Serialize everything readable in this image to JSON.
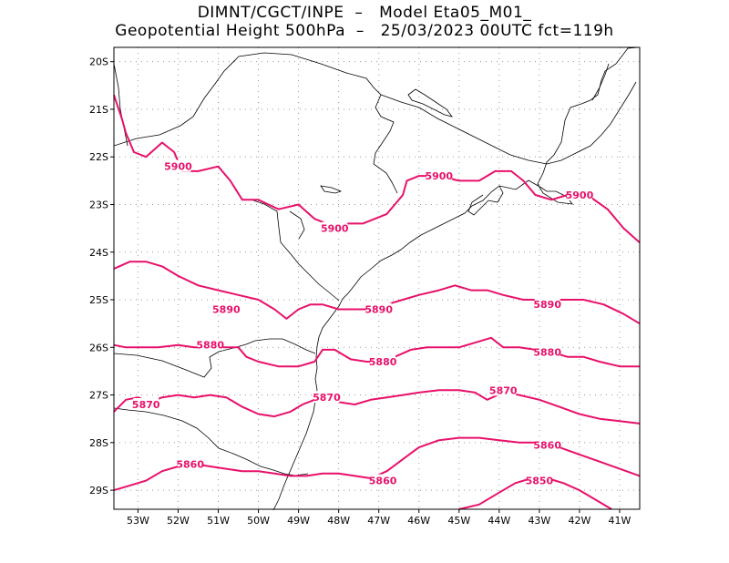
{
  "header": {
    "line1": "DIMNT/CGCT/INPE  –   Model Eta05_M01_",
    "line2": "Geopotential Height 500hPa  –   25/03/2023 00UTC fct=119h"
  },
  "axes": {
    "lat_labels": [
      "20S",
      "21S",
      "22S",
      "23S",
      "24S",
      "25S",
      "26S",
      "27S",
      "28S",
      "29S"
    ],
    "lon_labels": [
      "53W",
      "52W",
      "51W",
      "50W",
      "49W",
      "48W",
      "47W",
      "46W",
      "45W",
      "44W",
      "43W",
      "42W",
      "41W"
    ]
  },
  "colors": {
    "contour": "#e8106a",
    "coast": "#000000",
    "grid": "#999999"
  },
  "chart_data": {
    "type": "contour-map",
    "variable": "Geopotential Height 500hPa",
    "units": "gpm",
    "lon_range": [
      -53.6,
      -40.5
    ],
    "lat_range": [
      -29.4,
      -19.7
    ],
    "contour_levels": [
      5850,
      5860,
      5870,
      5880,
      5890,
      5900
    ],
    "labels": [
      {
        "text": "5900",
        "lon": -52.0,
        "lat": -22.2
      },
      {
        "text": "5900",
        "lon": -48.1,
        "lat": -23.5
      },
      {
        "text": "5900",
        "lon": -45.5,
        "lat": -22.4
      },
      {
        "text": "5900",
        "lon": -42.0,
        "lat": -22.8
      },
      {
        "text": "5890",
        "lon": -50.8,
        "lat": -25.2
      },
      {
        "text": "5890",
        "lon": -47.0,
        "lat": -25.2
      },
      {
        "text": "5890",
        "lon": -42.8,
        "lat": -25.1
      },
      {
        "text": "5880",
        "lon": -51.2,
        "lat": -25.95
      },
      {
        "text": "5880",
        "lon": -46.9,
        "lat": -26.3
      },
      {
        "text": "5880",
        "lon": -42.8,
        "lat": -26.1
      },
      {
        "text": "5870",
        "lon": -52.8,
        "lat": -27.2
      },
      {
        "text": "5870",
        "lon": -48.3,
        "lat": -27.05
      },
      {
        "text": "5870",
        "lon": -43.9,
        "lat": -26.9
      },
      {
        "text": "5860",
        "lon": -51.7,
        "lat": -28.45
      },
      {
        "text": "5860",
        "lon": -46.9,
        "lat": -28.8
      },
      {
        "text": "5860",
        "lon": -42.8,
        "lat": -28.05
      },
      {
        "text": "5850",
        "lon": -43.0,
        "lat": -28.8
      }
    ],
    "contours": [
      {
        "level": 5900,
        "points": [
          [
            -53.6,
            -20.7
          ],
          [
            -53.4,
            -21.2
          ],
          [
            -53.3,
            -21.5
          ],
          [
            -53.1,
            -21.9
          ],
          [
            -52.8,
            -22.0
          ],
          [
            -52.4,
            -21.7
          ],
          [
            -52.1,
            -21.9
          ],
          [
            -51.9,
            -22.3
          ],
          [
            -51.5,
            -22.3
          ],
          [
            -51.0,
            -22.2
          ],
          [
            -50.7,
            -22.5
          ],
          [
            -50.4,
            -22.9
          ],
          [
            -50.0,
            -22.9
          ],
          [
            -49.5,
            -23.1
          ],
          [
            -49.0,
            -23.0
          ],
          [
            -48.6,
            -23.3
          ],
          [
            -48.3,
            -23.4
          ],
          [
            -47.9,
            -23.4
          ],
          [
            -47.4,
            -23.4
          ],
          [
            -46.8,
            -23.2
          ],
          [
            -46.4,
            -22.8
          ],
          [
            -46.3,
            -22.5
          ],
          [
            -46.0,
            -22.4
          ],
          [
            -45.5,
            -22.4
          ],
          [
            -45.0,
            -22.5
          ],
          [
            -44.5,
            -22.5
          ],
          [
            -44.1,
            -22.3
          ],
          [
            -43.7,
            -22.3
          ],
          [
            -43.4,
            -22.5
          ],
          [
            -43.1,
            -22.8
          ],
          [
            -42.7,
            -22.9
          ],
          [
            -42.3,
            -22.8
          ],
          [
            -41.8,
            -22.8
          ],
          [
            -41.3,
            -23.1
          ],
          [
            -40.9,
            -23.5
          ],
          [
            -40.5,
            -23.8
          ]
        ]
      },
      {
        "level": 5890,
        "points": [
          [
            -53.6,
            -24.35
          ],
          [
            -53.2,
            -24.2
          ],
          [
            -52.8,
            -24.2
          ],
          [
            -52.4,
            -24.3
          ],
          [
            -52.0,
            -24.5
          ],
          [
            -51.5,
            -24.7
          ],
          [
            -51.0,
            -24.8
          ],
          [
            -50.5,
            -24.9
          ],
          [
            -50.0,
            -25.0
          ],
          [
            -49.6,
            -25.2
          ],
          [
            -49.3,
            -25.4
          ],
          [
            -49.0,
            -25.2
          ],
          [
            -48.7,
            -25.1
          ],
          [
            -48.4,
            -25.1
          ],
          [
            -48.0,
            -25.2
          ],
          [
            -47.6,
            -25.2
          ],
          [
            -47.2,
            -25.2
          ],
          [
            -46.8,
            -25.1
          ],
          [
            -46.4,
            -25.0
          ],
          [
            -46.0,
            -24.9
          ],
          [
            -45.5,
            -24.8
          ],
          [
            -45.1,
            -24.7
          ],
          [
            -44.7,
            -24.8
          ],
          [
            -44.3,
            -24.8
          ],
          [
            -43.9,
            -24.9
          ],
          [
            -43.4,
            -25.0
          ],
          [
            -42.9,
            -25.0
          ],
          [
            -42.4,
            -25.0
          ],
          [
            -41.9,
            -25.0
          ],
          [
            -41.4,
            -25.1
          ],
          [
            -40.9,
            -25.3
          ],
          [
            -40.5,
            -25.5
          ]
        ]
      },
      {
        "level": 5880,
        "points": [
          [
            -53.6,
            -25.95
          ],
          [
            -53.3,
            -26.0
          ],
          [
            -52.9,
            -26.0
          ],
          [
            -52.5,
            -26.0
          ],
          [
            -52.0,
            -25.95
          ],
          [
            -51.6,
            -26.0
          ],
          [
            -51.0,
            -26.0
          ],
          [
            -50.5,
            -26.0
          ],
          [
            -50.3,
            -26.2
          ],
          [
            -50.0,
            -26.3
          ],
          [
            -49.5,
            -26.4
          ],
          [
            -49.0,
            -26.4
          ],
          [
            -48.6,
            -26.3
          ],
          [
            -48.4,
            -26.05
          ],
          [
            -48.1,
            -26.05
          ],
          [
            -47.7,
            -26.25
          ],
          [
            -47.3,
            -26.3
          ],
          [
            -47.0,
            -26.3
          ],
          [
            -46.6,
            -26.2
          ],
          [
            -46.2,
            -26.05
          ],
          [
            -45.8,
            -26.0
          ],
          [
            -45.4,
            -26.0
          ],
          [
            -45.0,
            -26.0
          ],
          [
            -44.6,
            -25.9
          ],
          [
            -44.2,
            -25.8
          ],
          [
            -43.9,
            -26.0
          ],
          [
            -43.5,
            -26.0
          ],
          [
            -43.1,
            -26.05
          ],
          [
            -42.7,
            -26.1
          ],
          [
            -42.3,
            -26.2
          ],
          [
            -41.9,
            -26.2
          ],
          [
            -41.5,
            -26.3
          ],
          [
            -41.0,
            -26.4
          ],
          [
            -40.5,
            -26.4
          ]
        ]
      },
      {
        "level": 5870,
        "points": [
          [
            -53.6,
            -27.35
          ],
          [
            -53.3,
            -27.1
          ],
          [
            -53.0,
            -27.05
          ],
          [
            -52.7,
            -27.15
          ],
          [
            -52.4,
            -27.05
          ],
          [
            -52.0,
            -27.0
          ],
          [
            -51.6,
            -27.05
          ],
          [
            -51.2,
            -27.0
          ],
          [
            -50.8,
            -27.05
          ],
          [
            -50.4,
            -27.25
          ],
          [
            -50.0,
            -27.4
          ],
          [
            -49.6,
            -27.45
          ],
          [
            -49.2,
            -27.35
          ],
          [
            -48.9,
            -27.2
          ],
          [
            -48.6,
            -27.1
          ],
          [
            -48.3,
            -27.1
          ],
          [
            -48.0,
            -27.15
          ],
          [
            -47.6,
            -27.2
          ],
          [
            -47.2,
            -27.1
          ],
          [
            -46.8,
            -27.05
          ],
          [
            -46.4,
            -27.0
          ],
          [
            -46.0,
            -26.95
          ],
          [
            -45.5,
            -26.9
          ],
          [
            -45.0,
            -26.9
          ],
          [
            -44.6,
            -26.95
          ],
          [
            -44.3,
            -27.1
          ],
          [
            -43.9,
            -26.95
          ],
          [
            -43.5,
            -27.0
          ],
          [
            -43.0,
            -27.1
          ],
          [
            -42.5,
            -27.25
          ],
          [
            -42.0,
            -27.4
          ],
          [
            -41.5,
            -27.5
          ],
          [
            -41.0,
            -27.55
          ],
          [
            -40.5,
            -27.6
          ]
        ]
      },
      {
        "level": 5860,
        "points": [
          [
            -53.6,
            -29.0
          ],
          [
            -53.2,
            -28.9
          ],
          [
            -52.8,
            -28.8
          ],
          [
            -52.4,
            -28.6
          ],
          [
            -52.0,
            -28.5
          ],
          [
            -51.6,
            -28.45
          ],
          [
            -51.2,
            -28.5
          ],
          [
            -50.8,
            -28.55
          ],
          [
            -50.4,
            -28.6
          ],
          [
            -50.0,
            -28.6
          ],
          [
            -49.6,
            -28.65
          ],
          [
            -49.2,
            -28.7
          ],
          [
            -48.8,
            -28.7
          ],
          [
            -48.4,
            -28.65
          ],
          [
            -48.0,
            -28.65
          ],
          [
            -47.6,
            -28.7
          ],
          [
            -47.2,
            -28.75
          ],
          [
            -46.8,
            -28.6
          ],
          [
            -46.4,
            -28.35
          ],
          [
            -46.0,
            -28.1
          ],
          [
            -45.5,
            -27.95
          ],
          [
            -45.0,
            -27.9
          ],
          [
            -44.5,
            -27.9
          ],
          [
            -44.0,
            -27.95
          ],
          [
            -43.5,
            -28.0
          ],
          [
            -43.0,
            -28.0
          ],
          [
            -42.5,
            -28.1
          ],
          [
            -42.0,
            -28.25
          ],
          [
            -41.5,
            -28.4
          ],
          [
            -41.0,
            -28.55
          ],
          [
            -40.5,
            -28.7
          ]
        ]
      },
      {
        "level": 5850,
        "points": [
          [
            -45.0,
            -29.4
          ],
          [
            -44.5,
            -29.3
          ],
          [
            -44.0,
            -29.05
          ],
          [
            -43.6,
            -28.85
          ],
          [
            -43.2,
            -28.75
          ],
          [
            -42.8,
            -28.75
          ],
          [
            -42.4,
            -28.85
          ],
          [
            -42.0,
            -29.0
          ],
          [
            -41.6,
            -29.2
          ],
          [
            -41.2,
            -29.4
          ]
        ]
      }
    ]
  }
}
